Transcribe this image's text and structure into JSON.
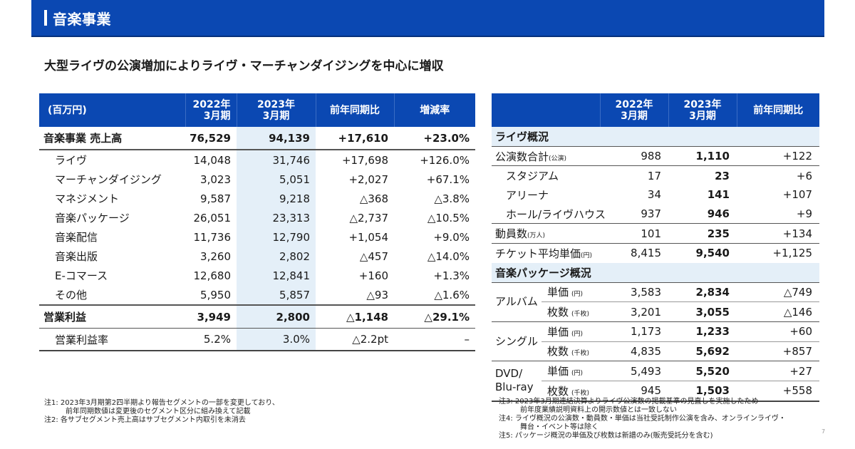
{
  "header": {
    "title": "音楽事業",
    "accent_color": "#0b48b2"
  },
  "subtitle": "大型ライヴの公演増加によりライヴ・マーチャンダイジングを中心に増収",
  "left_table": {
    "columns": [
      "(百万円)",
      "2022年\n3月期",
      "2023年\n3月期",
      "前年同期比",
      "増減率"
    ],
    "col_head": {
      "unit": "(百万円)",
      "fy22_l1": "2022年",
      "fy22_l2": "3月期",
      "fy23_l1": "2023年",
      "fy23_l2": "3月期",
      "yoy": "前年同期比",
      "rate": "増減率"
    },
    "rows": [
      {
        "label": "音楽事業 売上高",
        "fy22": "76,529",
        "fy23": "94,139",
        "yoy": "+17,610",
        "rate": "+23.0%"
      },
      {
        "label": "ライヴ",
        "fy22": "14,048",
        "fy23": "31,746",
        "yoy": "+17,698",
        "rate": "+126.0%"
      },
      {
        "label": "マーチャンダイジング",
        "fy22": "3,023",
        "fy23": "5,051",
        "yoy": "+2,027",
        "rate": "+67.1%"
      },
      {
        "label": "マネジメント",
        "fy22": "9,587",
        "fy23": "9,218",
        "yoy": "△368",
        "rate": "△3.8%"
      },
      {
        "label": "音楽パッケージ",
        "fy22": "26,051",
        "fy23": "23,313",
        "yoy": "△2,737",
        "rate": "△10.5%"
      },
      {
        "label": "音楽配信",
        "fy22": "11,736",
        "fy23": "12,790",
        "yoy": "+1,054",
        "rate": "+9.0%"
      },
      {
        "label": "音楽出版",
        "fy22": "3,260",
        "fy23": "2,802",
        "yoy": "△457",
        "rate": "△14.0%"
      },
      {
        "label": "E-コマース",
        "fy22": "12,680",
        "fy23": "12,841",
        "yoy": "+160",
        "rate": "+1.3%"
      },
      {
        "label": "その他",
        "fy22": "5,950",
        "fy23": "5,857",
        "yoy": "△93",
        "rate": "△1.6%"
      },
      {
        "label": "営業利益",
        "fy22": "3,949",
        "fy23": "2,800",
        "yoy": "△1,148",
        "rate": "△29.1%"
      },
      {
        "label": "営業利益率",
        "fy22": "5.2%",
        "fy23": "3.0%",
        "yoy": "△2.2pt",
        "rate": "–"
      }
    ],
    "highlight_color": "#e4eff8"
  },
  "left_notes": [
    "注1: 2023年3月期第2四半期より報告セグメントの一部を変更しており、",
    "前年同期数値は変更後のセグメント区分に組み換えて記載",
    "注2: 各サブセグメント売上高はサブセグメント内取引を未消去"
  ],
  "right_table": {
    "col_head": {
      "fy22_l1": "2022年",
      "fy22_l2": "3月期",
      "fy23_l1": "2023年",
      "fy23_l2": "3月期",
      "yoy": "前年同期比"
    },
    "live_section": "ライヴ概況",
    "live_rows": [
      {
        "label": "公演数合計",
        "unit": "(公演)",
        "fy22": "988",
        "fy23": "1,110",
        "yoy": "+122"
      },
      {
        "label": "スタジアム",
        "unit": "",
        "fy22": "17",
        "fy23": "23",
        "yoy": "+6"
      },
      {
        "label": "アリーナ",
        "unit": "",
        "fy22": "34",
        "fy23": "141",
        "yoy": "+107"
      },
      {
        "label": "ホール/ライヴハウス",
        "unit": "",
        "fy22": "937",
        "fy23": "946",
        "yoy": "+9"
      },
      {
        "label": "動員数",
        "unit": "(万人)",
        "fy22": "101",
        "fy23": "235",
        "yoy": "+134"
      },
      {
        "label": "チケット平均単価",
        "unit": "(円)",
        "fy22": "8,415",
        "fy23": "9,540",
        "yoy": "+1,125"
      }
    ],
    "package_section": "音楽パッケージ概況",
    "package_groups": [
      {
        "group": "アルバム",
        "rows": [
          {
            "metric": "単価",
            "unit": "(円)",
            "fy22": "3,583",
            "fy23": "2,834",
            "yoy": "△749"
          },
          {
            "metric": "枚数",
            "unit": "(千枚)",
            "fy22": "3,201",
            "fy23": "3,055",
            "yoy": "△146"
          }
        ]
      },
      {
        "group": "シングル",
        "rows": [
          {
            "metric": "単価",
            "unit": "(円)",
            "fy22": "1,173",
            "fy23": "1,233",
            "yoy": "+60"
          },
          {
            "metric": "枚数",
            "unit": "(千枚)",
            "fy22": "4,835",
            "fy23": "5,692",
            "yoy": "+857"
          }
        ]
      },
      {
        "group_l1": "DVD/",
        "group_l2": "Blu-ray",
        "rows": [
          {
            "metric": "単価",
            "unit": "(円)",
            "fy22": "5,493",
            "fy23": "5,520",
            "yoy": "+27"
          },
          {
            "metric": "枚数",
            "unit": "(千枚)",
            "fy22": "945",
            "fy23": "1,503",
            "yoy": "+558"
          }
        ]
      }
    ]
  },
  "right_notes": [
    "注3: 2023年3月期連結決算よりライヴ公演数の掲載基準の見直しを実施したため",
    "前年度業績説明資料上の開示数値とは一致しない",
    "注4: ライヴ概況の公演数・動員数・単価は当社受託制作公演を含み、オンラインライヴ・",
    "舞台・イベント等は除く",
    "注5: パッケージ概況の単価及び枚数は新譜のみ(販売受託分を含む)"
  ],
  "page_number": "7"
}
